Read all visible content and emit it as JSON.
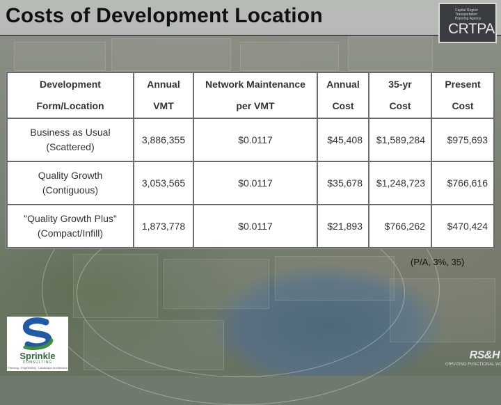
{
  "title": "Costs of Development Location",
  "crtpa_logo": {
    "small_text": "Capital Region Transportation Planning Agency",
    "big_text": "CRTPA"
  },
  "table": {
    "headers": [
      {
        "line1": "Development",
        "line2": "Form/Location"
      },
      {
        "line1": "Annual",
        "line2": "VMT"
      },
      {
        "line1": "Network Maintenance",
        "line2": "per VMT"
      },
      {
        "line1": "Annual",
        "line2": "Cost"
      },
      {
        "line1": "35-yr",
        "line2": "Cost"
      },
      {
        "line1": "Present",
        "line2": "Cost"
      }
    ],
    "rows": [
      {
        "form_line1": "Business as Usual",
        "form_line2": "(Scattered)",
        "annual_vmt": "3,886,355",
        "maint_per_vmt": "$0.0117",
        "annual_cost": "$45,408",
        "cost_35yr": "$1,589,284",
        "present_cost": "$975,693"
      },
      {
        "form_line1": "Quality Growth",
        "form_line2": "(Contiguous)",
        "annual_vmt": "3,053,565",
        "maint_per_vmt": "$0.0117",
        "annual_cost": "$35,678",
        "cost_35yr": "$1,248,723",
        "present_cost": "$766,616"
      },
      {
        "form_line1": "\"Quality Growth Plus\"",
        "form_line2": "(Compact/Infill)",
        "annual_vmt": "1,873,778",
        "maint_per_vmt": "$0.0117",
        "annual_cost": "$21,893",
        "cost_35yr": "$766,262",
        "present_cost": "$470,424"
      }
    ]
  },
  "factor_note": "(P/A, 3%, 35)",
  "sprinkle_logo": {
    "word": "Sprinkle",
    "sub": "CONSULTING",
    "tagline": "Planning · Engineering · Landscape Architecture"
  },
  "rsh_logo": {
    "word": "RS&H",
    "tagline": "CREATING FUNCTIONAL WORLD"
  },
  "colors": {
    "header_bar": "#bec2be",
    "title_text": "#111111",
    "table_border": "#6a6a6a",
    "table_text": "#333333",
    "sprinkle_green": "#2f6b3a",
    "sprinkle_blue": "#1f5aa6",
    "crtpa_dark": "#3a3d40"
  }
}
